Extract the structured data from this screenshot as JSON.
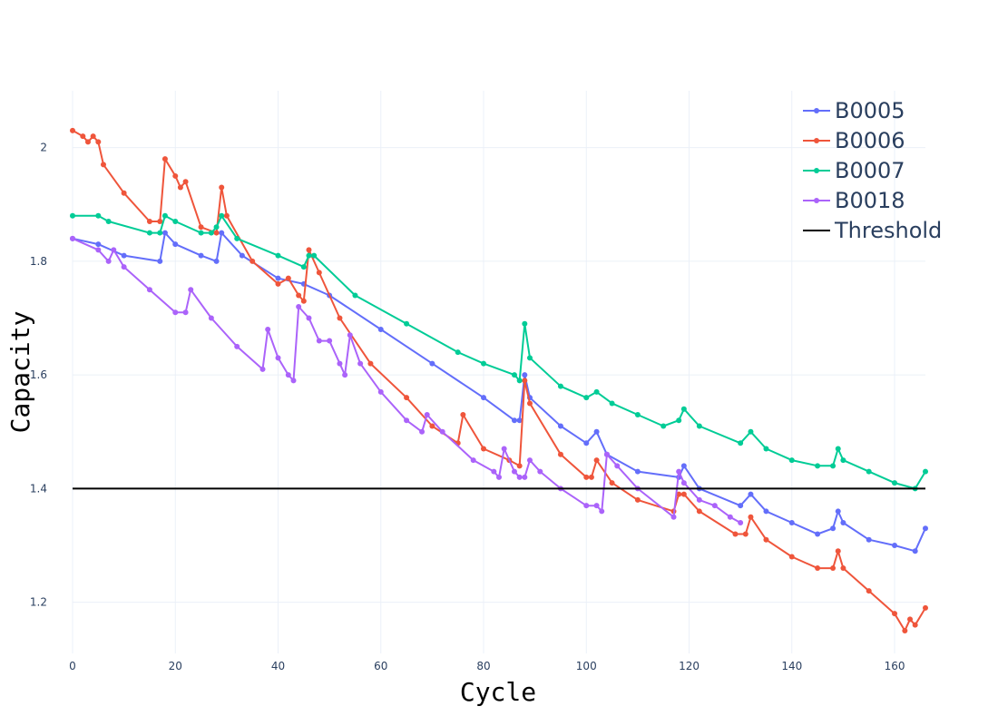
{
  "chart_data": {
    "type": "line",
    "xlabel": "Cycle",
    "ylabel": "Capacity",
    "xlim": [
      0,
      166
    ],
    "ylim": [
      1.11,
      2.1
    ],
    "x_ticks": [
      0,
      20,
      40,
      60,
      80,
      100,
      120,
      140,
      160
    ],
    "y_ticks": [
      1.2,
      1.4,
      1.6,
      1.8,
      2.0
    ],
    "x_tick_labels": [
      "0",
      "20",
      "40",
      "60",
      "80",
      "100",
      "120",
      "140",
      "160"
    ],
    "y_tick_labels": [
      "1.2",
      "1.4",
      "1.6",
      "1.8",
      "2"
    ],
    "grid": true,
    "legend_position": "top-right",
    "series": [
      {
        "name": "B0005",
        "color": "#636efa",
        "markers": true,
        "x": [
          0,
          5,
          10,
          17,
          18,
          20,
          25,
          28,
          29,
          33,
          40,
          45,
          50,
          60,
          70,
          80,
          86,
          87,
          88,
          89,
          95,
          100,
          102,
          104,
          110,
          118,
          119,
          122,
          130,
          132,
          135,
          140,
          145,
          148,
          149,
          150,
          155,
          160,
          164,
          166
        ],
        "y": [
          1.84,
          1.83,
          1.81,
          1.8,
          1.85,
          1.83,
          1.81,
          1.8,
          1.85,
          1.81,
          1.77,
          1.76,
          1.74,
          1.68,
          1.62,
          1.56,
          1.52,
          1.52,
          1.6,
          1.56,
          1.51,
          1.48,
          1.5,
          1.46,
          1.43,
          1.42,
          1.44,
          1.4,
          1.37,
          1.39,
          1.36,
          1.34,
          1.32,
          1.33,
          1.36,
          1.34,
          1.31,
          1.3,
          1.29,
          1.33
        ]
      },
      {
        "name": "B0006",
        "color": "#ef553b",
        "markers": true,
        "x": [
          0,
          2,
          3,
          4,
          5,
          6,
          10,
          15,
          17,
          18,
          20,
          21,
          22,
          25,
          28,
          29,
          30,
          35,
          40,
          42,
          44,
          45,
          46,
          48,
          52,
          58,
          65,
          70,
          75,
          76,
          80,
          85,
          87,
          88,
          89,
          95,
          100,
          101,
          102,
          105,
          110,
          117,
          118,
          119,
          122,
          129,
          131,
          132,
          135,
          140,
          145,
          148,
          149,
          150,
          155,
          160,
          162,
          163,
          164,
          166
        ],
        "y": [
          2.03,
          2.02,
          2.01,
          2.02,
          2.01,
          1.97,
          1.92,
          1.87,
          1.87,
          1.98,
          1.95,
          1.93,
          1.94,
          1.86,
          1.85,
          1.93,
          1.88,
          1.8,
          1.76,
          1.77,
          1.74,
          1.73,
          1.82,
          1.78,
          1.7,
          1.62,
          1.56,
          1.51,
          1.48,
          1.53,
          1.47,
          1.45,
          1.44,
          1.59,
          1.55,
          1.46,
          1.42,
          1.42,
          1.45,
          1.41,
          1.38,
          1.36,
          1.39,
          1.39,
          1.36,
          1.32,
          1.32,
          1.35,
          1.31,
          1.28,
          1.26,
          1.26,
          1.29,
          1.26,
          1.22,
          1.18,
          1.15,
          1.17,
          1.16,
          1.19
        ]
      },
      {
        "name": "B0007",
        "color": "#00cc96",
        "markers": true,
        "x": [
          0,
          5,
          7,
          15,
          17,
          18,
          20,
          25,
          27,
          28,
          29,
          32,
          40,
          45,
          46,
          47,
          55,
          65,
          75,
          80,
          86,
          87,
          88,
          89,
          95,
          100,
          102,
          105,
          110,
          115,
          118,
          119,
          122,
          130,
          132,
          135,
          140,
          145,
          148,
          149,
          150,
          155,
          160,
          164,
          166
        ],
        "y": [
          1.88,
          1.88,
          1.87,
          1.85,
          1.85,
          1.88,
          1.87,
          1.85,
          1.85,
          1.86,
          1.88,
          1.84,
          1.81,
          1.79,
          1.81,
          1.81,
          1.74,
          1.69,
          1.64,
          1.62,
          1.6,
          1.59,
          1.69,
          1.63,
          1.58,
          1.56,
          1.57,
          1.55,
          1.53,
          1.51,
          1.52,
          1.54,
          1.51,
          1.48,
          1.5,
          1.47,
          1.45,
          1.44,
          1.44,
          1.47,
          1.45,
          1.43,
          1.41,
          1.4,
          1.43
        ]
      },
      {
        "name": "B0018",
        "color": "#ab63fa",
        "markers": true,
        "x": [
          0,
          5,
          7,
          8,
          10,
          15,
          20,
          22,
          23,
          27,
          32,
          37,
          38,
          40,
          42,
          43,
          44,
          46,
          48,
          50,
          52,
          53,
          54,
          56,
          60,
          65,
          68,
          69,
          72,
          78,
          82,
          83,
          84,
          86,
          87,
          88,
          89,
          91,
          95,
          100,
          102,
          103,
          104,
          106,
          110,
          117,
          118,
          119,
          122,
          125,
          128,
          130
        ],
        "y": [
          1.84,
          1.82,
          1.8,
          1.82,
          1.79,
          1.75,
          1.71,
          1.71,
          1.75,
          1.7,
          1.65,
          1.61,
          1.68,
          1.63,
          1.6,
          1.59,
          1.72,
          1.7,
          1.66,
          1.66,
          1.62,
          1.6,
          1.67,
          1.62,
          1.57,
          1.52,
          1.5,
          1.53,
          1.5,
          1.45,
          1.43,
          1.42,
          1.47,
          1.43,
          1.42,
          1.42,
          1.45,
          1.43,
          1.4,
          1.37,
          1.37,
          1.36,
          1.46,
          1.44,
          1.4,
          1.35,
          1.43,
          1.41,
          1.38,
          1.37,
          1.35,
          1.34
        ]
      },
      {
        "name": "Threshold",
        "color": "#000000",
        "markers": false,
        "x": [
          0,
          166
        ],
        "y": [
          1.4,
          1.4
        ]
      }
    ]
  }
}
